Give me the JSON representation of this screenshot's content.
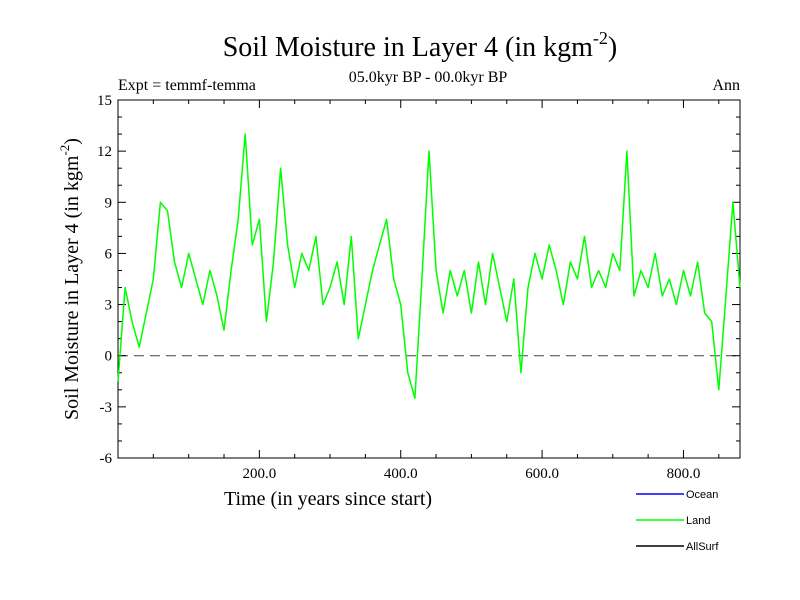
{
  "chart_data": {
    "type": "line",
    "title": "Soil Moisture in Layer 4 (in kgm",
    "title_superscript": "-2",
    "title_suffix": ")",
    "subtitle": "05.0kyr BP - 00.0kyr BP",
    "left_label": "Expt = temmf-temma",
    "right_label": "Ann",
    "xlabel": "Time (in years since start)",
    "ylabel": "Soil Moisture in Layer 4 (in kgm",
    "ylabel_superscript": "-2",
    "ylabel_suffix": ")",
    "xlim": [
      0,
      880
    ],
    "ylim": [
      -6,
      15
    ],
    "x_ticks": [
      {
        "value": 200,
        "label": "200.0"
      },
      {
        "value": 400,
        "label": "400.0"
      },
      {
        "value": 600,
        "label": "600.0"
      },
      {
        "value": 800,
        "label": "800.0"
      }
    ],
    "y_ticks": [
      {
        "value": 15,
        "label": "15"
      },
      {
        "value": 12,
        "label": "12"
      },
      {
        "value": 9,
        "label": "9"
      },
      {
        "value": 6,
        "label": "6"
      },
      {
        "value": 3,
        "label": "3"
      },
      {
        "value": 0,
        "label": "0"
      },
      {
        "value": -3,
        "label": "-3"
      },
      {
        "value": -6,
        "label": "-6"
      }
    ],
    "zero_line": 0,
    "legend": [
      {
        "name": "Ocean",
        "color": "#0000ff"
      },
      {
        "name": "Land",
        "color": "#00ff00"
      },
      {
        "name": "AllSurf",
        "color": "#000000"
      }
    ],
    "series": [
      {
        "name": "Land",
        "color": "#00ff00",
        "x": [
          0,
          10,
          20,
          30,
          40,
          50,
          60,
          70,
          80,
          90,
          100,
          110,
          120,
          130,
          140,
          150,
          160,
          170,
          180,
          190,
          200,
          210,
          220,
          230,
          240,
          250,
          260,
          270,
          280,
          290,
          300,
          310,
          320,
          330,
          340,
          350,
          360,
          370,
          380,
          390,
          400,
          410,
          420,
          430,
          440,
          450,
          460,
          470,
          480,
          490,
          500,
          510,
          520,
          530,
          540,
          550,
          560,
          570,
          580,
          590,
          600,
          610,
          620,
          630,
          640,
          650,
          660,
          670,
          680,
          690,
          700,
          710,
          720,
          730,
          740,
          750,
          760,
          770,
          780,
          790,
          800,
          810,
          820,
          830,
          840,
          850,
          860,
          870,
          880
        ],
        "values": [
          -1.5,
          4.0,
          2.0,
          0.5,
          2.5,
          4.5,
          9.0,
          8.5,
          5.5,
          4.0,
          6.0,
          4.5,
          3.0,
          5.0,
          3.5,
          1.5,
          5.0,
          8.0,
          13.0,
          6.5,
          8.0,
          2.0,
          5.5,
          11.0,
          6.5,
          4.0,
          6.0,
          5.0,
          7.0,
          3.0,
          4.0,
          5.5,
          3.0,
          7.0,
          1.0,
          3.0,
          5.0,
          6.5,
          8.0,
          4.5,
          3.0,
          -1.0,
          -2.5,
          4.5,
          12.0,
          5.0,
          2.5,
          5.0,
          3.5,
          5.0,
          2.5,
          5.5,
          3.0,
          6.0,
          4.0,
          2.0,
          4.5,
          -1.0,
          4.0,
          6.0,
          4.5,
          6.5,
          5.0,
          3.0,
          5.5,
          4.5,
          7.0,
          4.0,
          5.0,
          4.0,
          6.0,
          5.0,
          12.0,
          3.5,
          5.0,
          4.0,
          6.0,
          3.5,
          4.5,
          3.0,
          5.0,
          3.5,
          5.5,
          2.5,
          2.0,
          -2.0,
          3.5,
          9.0,
          4.0
        ]
      }
    ]
  }
}
